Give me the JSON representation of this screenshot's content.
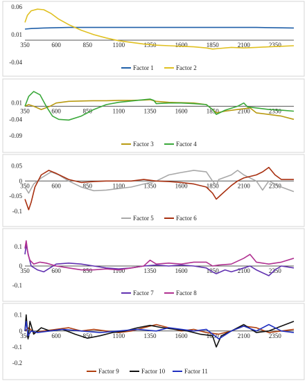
{
  "chart_data": [
    {
      "type": "line",
      "panel": 1,
      "xlim": [
        350,
        2500
      ],
      "ylim": [
        -0.04,
        0.06
      ],
      "y_ticks": [
        0.06,
        0.01,
        -0.04
      ],
      "y_tick_labels": [
        "0.06",
        "0.01",
        "-0.04"
      ],
      "x_ticks": [
        350,
        600,
        850,
        1100,
        1350,
        1600,
        1850,
        2100,
        2350
      ],
      "x_tick_labels": [
        "350",
        "600",
        "850",
        "1100",
        "1350",
        "1600",
        "1850",
        "2100",
        "2350"
      ],
      "legend_placement": "bottom",
      "series": [
        {
          "name": "Factor 1",
          "color": "#1f5fa8",
          "x": [
            350,
            400,
            500,
            700,
            1000,
            1400,
            1800,
            2200,
            2500
          ],
          "y": [
            0.02,
            0.021,
            0.022,
            0.023,
            0.023,
            0.023,
            0.023,
            0.023,
            0.022
          ]
        },
        {
          "name": "Factor 2",
          "color": "#e0c020",
          "x": [
            350,
            370,
            400,
            450,
            500,
            560,
            620,
            700,
            800,
            900,
            1000,
            1100,
            1200,
            1300,
            1400,
            1500,
            1600,
            1700,
            1800,
            1850,
            1900,
            2000,
            2100,
            2200,
            2300,
            2400,
            2500
          ],
          "y": [
            0.032,
            0.045,
            0.053,
            0.056,
            0.055,
            0.048,
            0.038,
            0.028,
            0.018,
            0.01,
            0.004,
            -0.001,
            -0.004,
            -0.007,
            -0.009,
            -0.01,
            -0.011,
            -0.012,
            -0.014,
            -0.016,
            -0.015,
            -0.013,
            -0.014,
            -0.013,
            -0.012,
            -0.011,
            -0.01
          ]
        }
      ]
    },
    {
      "type": "line",
      "panel": 2,
      "xlim": [
        350,
        2500
      ],
      "ylim": [
        -0.09,
        0.06
      ],
      "y_ticks": [
        0.01,
        -0.04,
        -0.09
      ],
      "y_tick_labels": [
        "0.01",
        "-0.04",
        "-0.09"
      ],
      "x_ticks": [
        350,
        600,
        850,
        1100,
        1350,
        1600,
        1850,
        2100,
        2350
      ],
      "x_tick_labels": [
        "350",
        "600",
        "850",
        "1100",
        "1350",
        "1600",
        "1850",
        "2100",
        "2350"
      ],
      "legend_placement": "bottom",
      "series": [
        {
          "name": "Factor 3",
          "color": "#b89a10",
          "x": [
            350,
            380,
            420,
            480,
            550,
            600,
            700,
            800,
            900,
            1000,
            1100,
            1200,
            1300,
            1350,
            1400,
            1500,
            1600,
            1700,
            1800,
            1850,
            1880,
            1950,
            2050,
            2150,
            2200,
            2300,
            2400,
            2500
          ],
          "y": [
            0.0,
            0.005,
            0.0,
            -0.01,
            0.0,
            0.01,
            0.015,
            0.016,
            0.017,
            0.017,
            0.018,
            0.018,
            0.019,
            0.02,
            0.015,
            0.012,
            0.011,
            0.01,
            0.005,
            -0.01,
            -0.02,
            -0.015,
            -0.01,
            -0.005,
            -0.02,
            -0.025,
            -0.03,
            -0.04
          ]
        },
        {
          "name": "Factor 4",
          "color": "#3aa83a",
          "x": [
            350,
            380,
            420,
            470,
            520,
            570,
            620,
            700,
            800,
            900,
            1000,
            1100,
            1200,
            1300,
            1350,
            1380,
            1400,
            1500,
            1600,
            1700,
            1800,
            1850,
            1880,
            1950,
            2050,
            2100,
            2130,
            2200,
            2300,
            2400,
            2500
          ],
          "y": [
            0.0,
            0.03,
            0.045,
            0.035,
            0.0,
            -0.03,
            -0.04,
            -0.042,
            -0.03,
            -0.01,
            0.005,
            0.012,
            0.016,
            0.02,
            0.022,
            0.018,
            0.008,
            0.01,
            0.01,
            0.008,
            0.005,
            -0.01,
            -0.025,
            -0.012,
            0.0,
            0.01,
            -0.002,
            -0.005,
            -0.01,
            -0.012,
            -0.015
          ]
        }
      ]
    },
    {
      "type": "line",
      "panel": 3,
      "xlim": [
        350,
        2500
      ],
      "ylim": [
        -0.1,
        0.06
      ],
      "y_ticks": [
        0.05,
        0,
        -0.05,
        -0.1
      ],
      "y_tick_labels": [
        "0.05",
        "0",
        "-0.05",
        "-0.1"
      ],
      "x_ticks": [
        350,
        600,
        850,
        1100,
        1350,
        1600,
        1850,
        2100,
        2350
      ],
      "x_tick_labels": [
        "350",
        "600",
        "850",
        "1100",
        "1350",
        "1600",
        "1850",
        "2100",
        "2350"
      ],
      "legend_placement": "bottom",
      "series": [
        {
          "name": "Factor 5",
          "color": "#a8a8a8",
          "x": [
            350,
            380,
            420,
            480,
            560,
            620,
            700,
            800,
            900,
            1000,
            1100,
            1200,
            1300,
            1400,
            1500,
            1600,
            1700,
            1800,
            1850,
            1880,
            1900,
            2000,
            2050,
            2100,
            2200,
            2250,
            2300,
            2400,
            2500
          ],
          "y": [
            -0.02,
            -0.04,
            -0.01,
            0.01,
            0.03,
            0.02,
            0.0,
            -0.02,
            -0.032,
            -0.03,
            -0.025,
            -0.02,
            -0.01,
            0.0,
            0.02,
            0.028,
            0.035,
            0.03,
            0.0,
            -0.015,
            0.005,
            0.02,
            0.035,
            0.02,
            0.0,
            -0.03,
            0.0,
            -0.02,
            -0.035
          ]
        },
        {
          "name": "Factor 6",
          "color": "#a83010",
          "x": [
            350,
            380,
            400,
            430,
            480,
            540,
            600,
            700,
            800,
            900,
            1000,
            1100,
            1200,
            1300,
            1400,
            1500,
            1600,
            1700,
            1800,
            1850,
            1880,
            1920,
            2000,
            2050,
            2100,
            2200,
            2250,
            2300,
            2350,
            2400,
            2500
          ],
          "y": [
            -0.06,
            -0.095,
            -0.07,
            -0.02,
            0.02,
            0.035,
            0.025,
            0.005,
            -0.005,
            -0.002,
            0.0,
            0.0,
            0.0,
            0.005,
            0.0,
            -0.002,
            -0.005,
            -0.01,
            -0.02,
            -0.04,
            -0.06,
            -0.045,
            -0.015,
            0.0,
            0.01,
            0.02,
            0.03,
            0.045,
            0.02,
            0.005,
            0.005
          ]
        }
      ]
    },
    {
      "type": "line",
      "panel": 4,
      "xlim": [
        350,
        2500
      ],
      "ylim": [
        -0.1,
        0.15
      ],
      "y_ticks": [
        0.1,
        0,
        -0.1
      ],
      "y_tick_labels": [
        "0.1",
        "0",
        "-0.1"
      ],
      "x_ticks": [
        350,
        600,
        850,
        1100,
        1350,
        1600,
        1850,
        2100,
        2350
      ],
      "x_tick_labels": [
        "350",
        "600",
        "850",
        "1100",
        "1350",
        "1600",
        "1850",
        "2100",
        "2350"
      ],
      "legend_placement": "bottom",
      "series": [
        {
          "name": "Factor 7",
          "color": "#6030b0",
          "x": [
            350,
            360,
            380,
            400,
            450,
            500,
            550,
            600,
            700,
            800,
            900,
            1000,
            1100,
            1200,
            1300,
            1400,
            1500,
            1600,
            1700,
            1800,
            1850,
            1880,
            1950,
            2000,
            2100,
            2150,
            2200,
            2300,
            2350,
            2400,
            2500
          ],
          "y": [
            0.06,
            0.11,
            0.05,
            0.0,
            -0.02,
            -0.03,
            -0.01,
            0.01,
            0.015,
            0.01,
            0.0,
            -0.01,
            -0.015,
            -0.01,
            0.0,
            0.005,
            0.0,
            0.005,
            0.0,
            -0.01,
            -0.03,
            -0.04,
            -0.02,
            -0.03,
            -0.01,
            0.0,
            -0.02,
            -0.05,
            -0.02,
            0.0,
            -0.01
          ]
        },
        {
          "name": "Factor 8",
          "color": "#b03090",
          "x": [
            350,
            360,
            375,
            390,
            420,
            470,
            520,
            600,
            700,
            800,
            900,
            1000,
            1100,
            1200,
            1300,
            1350,
            1400,
            1500,
            1600,
            1700,
            1800,
            1850,
            1900,
            2000,
            2100,
            2150,
            2200,
            2300,
            2400,
            2500
          ],
          "y": [
            0.09,
            0.13,
            0.06,
            0.03,
            0.01,
            0.02,
            0.015,
            0.0,
            -0.01,
            -0.02,
            -0.02,
            -0.015,
            -0.02,
            -0.01,
            0.0,
            0.03,
            0.01,
            0.015,
            0.01,
            0.02,
            0.02,
            0.0,
            0.005,
            0.01,
            0.04,
            0.06,
            0.02,
            0.01,
            0.02,
            0.04
          ]
        }
      ]
    },
    {
      "type": "line",
      "panel": 5,
      "xlim": [
        350,
        2500
      ],
      "ylim": [
        -0.2,
        0.12
      ],
      "y_ticks": [
        0.1,
        0,
        -0.1,
        -0.2
      ],
      "y_tick_labels": [
        "0.1",
        "0",
        "-0.1",
        "-0.2"
      ],
      "x_ticks": [
        350,
        600,
        850,
        1100,
        1350,
        1600,
        1850,
        2100,
        2350
      ],
      "x_tick_labels": [
        "350",
        "600",
        "850",
        "1100",
        "1350",
        "1600",
        "1850",
        "2100",
        "2350"
      ],
      "legend_placement": "bottom",
      "series": [
        {
          "name": "Factor 9",
          "color": "#b04010",
          "x": [
            350,
            380,
            420,
            500,
            600,
            700,
            800,
            900,
            1000,
            1100,
            1200,
            1300,
            1400,
            1500,
            1600,
            1700,
            1800,
            1900,
            2000,
            2100,
            2200,
            2300,
            2400,
            2500
          ],
          "y": [
            0.0,
            0.02,
            -0.01,
            0.0,
            0.01,
            0.02,
            0.0,
            0.01,
            0.0,
            -0.01,
            0.0,
            0.02,
            0.04,
            0.02,
            0.0,
            0.01,
            -0.01,
            -0.02,
            0.0,
            0.03,
            0.02,
            -0.01,
            0.0,
            0.01
          ]
        },
        {
          "name": "Factor 10",
          "color": "#111111",
          "x": [
            350,
            360,
            375,
            390,
            420,
            480,
            550,
            650,
            750,
            850,
            950,
            1050,
            1150,
            1250,
            1350,
            1450,
            1550,
            1650,
            1750,
            1850,
            1880,
            1920,
            2000,
            2100,
            2200,
            2300,
            2400,
            2500
          ],
          "y": [
            0.0,
            0.1,
            -0.05,
            0.06,
            -0.02,
            0.02,
            0.0,
            0.01,
            -0.02,
            -0.045,
            -0.03,
            -0.01,
            0.0,
            0.02,
            0.035,
            0.02,
            0.01,
            0.0,
            -0.02,
            -0.03,
            -0.1,
            -0.03,
            0.0,
            0.04,
            -0.01,
            0.0,
            0.03,
            0.06
          ]
        },
        {
          "name": "Factor 11",
          "color": "#2030c0",
          "x": [
            350,
            360,
            375,
            400,
            450,
            550,
            650,
            800,
            950,
            1100,
            1250,
            1400,
            1500,
            1600,
            1700,
            1800,
            1850,
            1900,
            2000,
            2100,
            2200,
            2300,
            2400,
            2500
          ],
          "y": [
            0.0,
            0.06,
            -0.03,
            0.0,
            -0.01,
            0.0,
            0.01,
            0.0,
            -0.01,
            0.0,
            0.01,
            0.0,
            0.02,
            0.01,
            0.0,
            0.01,
            -0.02,
            -0.05,
            0.0,
            0.03,
            0.0,
            0.04,
            0.0,
            -0.01
          ]
        }
      ]
    }
  ]
}
